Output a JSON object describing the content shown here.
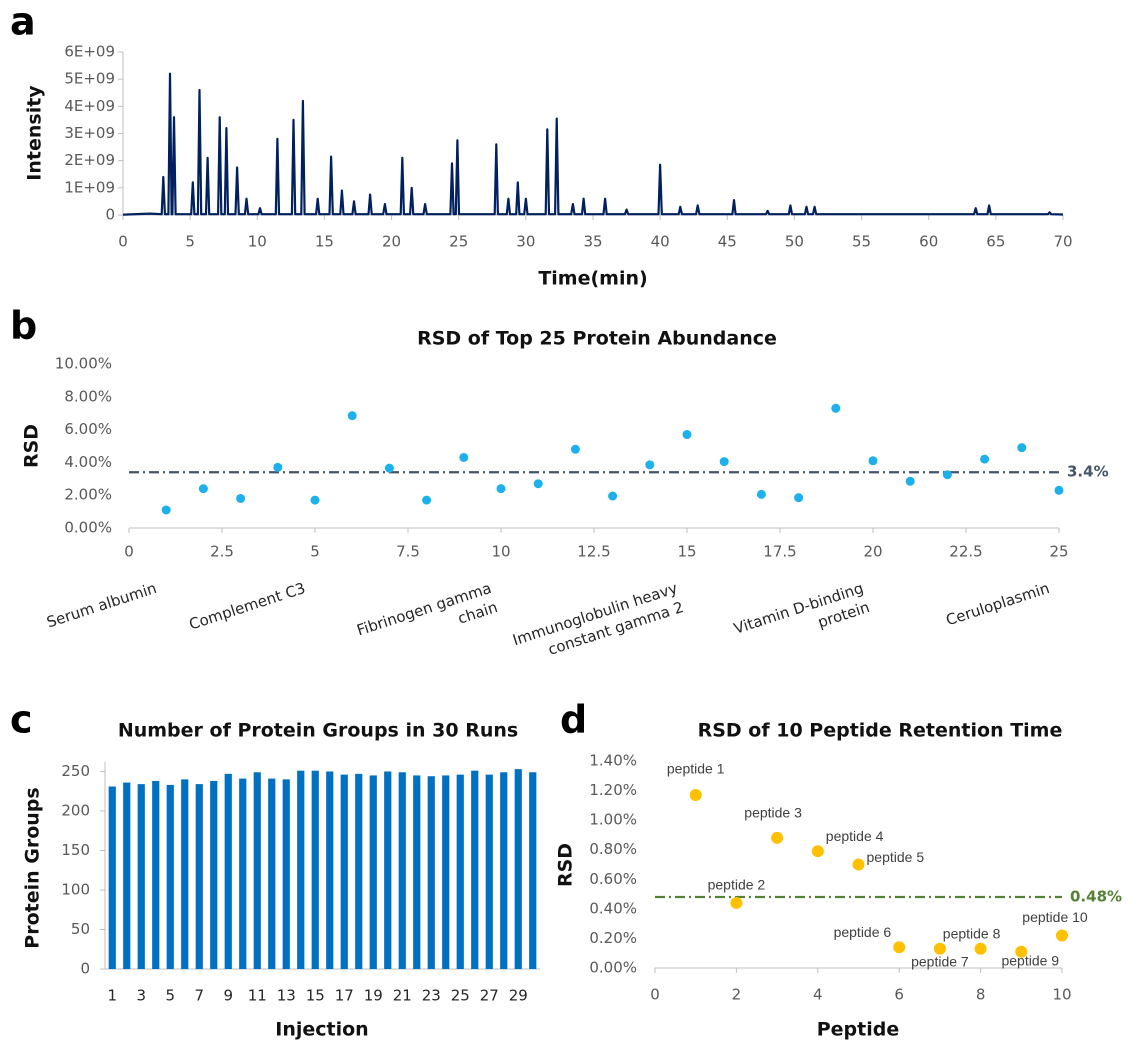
{
  "chart_data": [
    {
      "type": "line",
      "panel": "a",
      "x_label": "Time(min)",
      "y_label": "Intensity",
      "color": "#002060",
      "xlim": [
        0,
        70
      ],
      "xticks": [
        0,
        5,
        10,
        15,
        20,
        25,
        30,
        35,
        40,
        45,
        50,
        55,
        60,
        65,
        70
      ],
      "ylim": [
        0,
        6000000000.0
      ],
      "yticks": [
        0,
        {
          "value": 1000000000.0,
          "label": "1E+09"
        },
        {
          "value": 2000000000.0,
          "label": "2E+09"
        },
        {
          "value": 3000000000.0,
          "label": "3E+09"
        },
        {
          "value": 4000000000.0,
          "label": "4E+09"
        },
        {
          "value": 5000000000.0,
          "label": "5E+09"
        },
        {
          "value": 6000000000.0,
          "label": "6E+09"
        }
      ],
      "x": [
        0,
        2,
        2.88,
        3,
        3.12,
        3.38,
        3.5,
        3.62,
        3.68,
        3.8,
        3.92,
        5.08,
        5.2,
        5.32,
        5.58,
        5.7,
        5.82,
        6.18,
        6.3,
        6.42,
        7.08,
        7.2,
        7.32,
        7.58,
        7.7,
        7.82,
        8.38,
        8.5,
        8.62,
        9.08,
        9.2,
        9.32,
        10.08,
        10.2,
        10.32,
        11.38,
        11.5,
        11.62,
        12.58,
        12.7,
        12.82,
        13.28,
        13.4,
        13.52,
        14.38,
        14.5,
        14.62,
        15.38,
        15.5,
        15.62,
        16.18,
        16.3,
        16.42,
        17.08,
        17.2,
        17.32,
        18.28,
        18.4,
        18.52,
        19.38,
        19.5,
        19.62,
        20.68,
        20.8,
        20.92,
        21.38,
        21.5,
        21.62,
        22.38,
        22.5,
        22.62,
        24.38,
        24.5,
        24.62,
        24.78,
        24.9,
        25.02,
        27.68,
        27.8,
        27.92,
        28.58,
        28.7,
        28.82,
        29.28,
        29.4,
        29.52,
        29.88,
        30,
        30.12,
        31.48,
        31.6,
        31.72,
        32.18,
        32.3,
        32.42,
        33.38,
        33.5,
        33.62,
        34.18,
        34.3,
        34.42,
        35.78,
        35.9,
        36.02,
        37.38,
        37.5,
        37.62,
        39.88,
        40,
        40.12,
        41.38,
        41.5,
        41.62,
        42.68,
        42.8,
        42.92,
        45.38,
        45.5,
        45.62,
        47.88,
        48,
        48.12,
        49.58,
        49.7,
        49.82,
        50.78,
        50.9,
        51.02,
        51.38,
        51.5,
        51.62,
        63.38,
        63.5,
        63.62,
        64.38,
        64.5,
        64.62,
        68.88,
        69,
        69.12,
        70
      ],
      "values": [
        10000000.0,
        50000000.0,
        30000000.0,
        1400000000.0,
        30000000.0,
        30000000.0,
        5200000000.0,
        30000000.0,
        30000000.0,
        3600000000.0,
        30000000.0,
        30000000.0,
        1200000000.0,
        30000000.0,
        30000000.0,
        4600000000.0,
        30000000.0,
        30000000.0,
        2100000000.0,
        30000000.0,
        30000000.0,
        3600000000.0,
        30000000.0,
        30000000.0,
        3200000000.0,
        30000000.0,
        30000000.0,
        1750000000.0,
        30000000.0,
        30000000.0,
        600000000.0,
        30000000.0,
        30000000.0,
        250000000.0,
        30000000.0,
        30000000.0,
        2800000000.0,
        30000000.0,
        30000000.0,
        3500000000.0,
        30000000.0,
        30000000.0,
        4200000000.0,
        30000000.0,
        30000000.0,
        600000000.0,
        30000000.0,
        30000000.0,
        2150000000.0,
        30000000.0,
        30000000.0,
        900000000.0,
        30000000.0,
        30000000.0,
        500000000.0,
        30000000.0,
        30000000.0,
        750000000.0,
        30000000.0,
        30000000.0,
        400000000.0,
        30000000.0,
        30000000.0,
        2100000000.0,
        30000000.0,
        30000000.0,
        1000000000.0,
        30000000.0,
        30000000.0,
        400000000.0,
        30000000.0,
        30000000.0,
        1900000000.0,
        30000000.0,
        30000000.0,
        2750000000.0,
        30000000.0,
        30000000.0,
        2600000000.0,
        30000000.0,
        30000000.0,
        600000000.0,
        30000000.0,
        30000000.0,
        1200000000.0,
        30000000.0,
        30000000.0,
        600000000.0,
        30000000.0,
        30000000.0,
        3150000000.0,
        30000000.0,
        30000000.0,
        3550000000.0,
        30000000.0,
        30000000.0,
        400000000.0,
        30000000.0,
        30000000.0,
        600000000.0,
        30000000.0,
        30000000.0,
        600000000.0,
        30000000.0,
        30000000.0,
        200000000.0,
        30000000.0,
        30000000.0,
        1850000000.0,
        30000000.0,
        30000000.0,
        300000000.0,
        30000000.0,
        30000000.0,
        350000000.0,
        30000000.0,
        30000000.0,
        550000000.0,
        30000000.0,
        30000000.0,
        150000000.0,
        30000000.0,
        30000000.0,
        350000000.0,
        30000000.0,
        30000000.0,
        300000000.0,
        30000000.0,
        30000000.0,
        300000000.0,
        30000000.0,
        30000000.0,
        250000000.0,
        30000000.0,
        30000000.0,
        350000000.0,
        30000000.0,
        30000000.0,
        100000000.0,
        30000000.0,
        20000000.0
      ]
    },
    {
      "type": "scatter",
      "panel": "b",
      "title": "RSD of Top 25 Protein Abundance",
      "y_label": "RSD",
      "color": "#1cb0ec",
      "xlim": [
        0,
        25
      ],
      "xticks": [
        0,
        2.5,
        5,
        7.5,
        10,
        12.5,
        15,
        17.5,
        20,
        22.5,
        25
      ],
      "ylim": [
        0,
        10
      ],
      "yticks": [
        {
          "value": 0,
          "label": "0.00%"
        },
        {
          "value": 2,
          "label": "2.00%"
        },
        {
          "value": 4,
          "label": "4.00%"
        },
        {
          "value": 6,
          "label": "6.00%"
        },
        {
          "value": 8,
          "label": "8.00%"
        },
        {
          "value": 10,
          "label": "10.00%"
        }
      ],
      "x": [
        1,
        2,
        3,
        4,
        5,
        6,
        7,
        8,
        9,
        10,
        11,
        12,
        13,
        14,
        15,
        16,
        17,
        18,
        19,
        20,
        21,
        22,
        23,
        24,
        25
      ],
      "values": [
        1.1,
        2.4,
        1.8,
        3.7,
        1.7,
        6.85,
        3.65,
        1.7,
        4.3,
        2.4,
        2.7,
        4.8,
        1.95,
        3.85,
        5.7,
        4.05,
        2.05,
        1.85,
        7.3,
        4.1,
        2.85,
        3.25,
        4.2,
        4.9,
        2.3
      ],
      "reference_line": {
        "value": 3.4,
        "label": "3.4%",
        "color": "#44546a"
      },
      "annotations": [
        {
          "x": 1,
          "lines": [
            "Serum albumin"
          ]
        },
        {
          "x": 5,
          "lines": [
            "Complement C3"
          ]
        },
        {
          "x": 10,
          "lines": [
            "Fibrinogen gamma",
            "chain"
          ]
        },
        {
          "x": 15,
          "lines": [
            "Immunoglobulin heavy",
            "constant gamma 2"
          ]
        },
        {
          "x": 20,
          "lines": [
            "Vitamin D-binding",
            "protein"
          ]
        },
        {
          "x": 25,
          "lines": [
            "Ceruloplasmin"
          ]
        }
      ]
    },
    {
      "type": "bar",
      "panel": "c",
      "title": "Number of Protein Groups in 30 Runs",
      "x_label": "Injection",
      "y_label": "Protein Groups",
      "color": "#0070c0",
      "categories": [
        "1",
        null,
        "3",
        null,
        "5",
        null,
        "7",
        null,
        "9",
        null,
        "11",
        null,
        "13",
        null,
        "15",
        null,
        "17",
        null,
        "19",
        null,
        "21",
        null,
        "23",
        null,
        "25",
        null,
        "27",
        null,
        "29",
        null
      ],
      "values": [
        231,
        236,
        234,
        238,
        233,
        240,
        234,
        238,
        247,
        241,
        249,
        241,
        240,
        251,
        251,
        250,
        246,
        247,
        245,
        250,
        249,
        245,
        244,
        245,
        246,
        251,
        246,
        249,
        253,
        249
      ],
      "ylim": [
        0,
        262
      ],
      "yticks": [
        0,
        50,
        100,
        150,
        200,
        250
      ]
    },
    {
      "type": "scatter",
      "panel": "d",
      "title": "RSD of 10 Peptide Retention Time",
      "x_label": "Peptide",
      "y_label": "RSD",
      "color": "#ffc000",
      "xlim": [
        0,
        10
      ],
      "xticks": [
        0,
        2,
        4,
        6,
        8,
        10
      ],
      "ylim": [
        0,
        1.4
      ],
      "yticks": [
        {
          "value": 0,
          "label": "0.00%"
        },
        {
          "value": 0.2,
          "label": "0.20%"
        },
        {
          "value": 0.4,
          "label": "0.40%"
        },
        {
          "value": 0.6,
          "label": "0.60%"
        },
        {
          "value": 0.8,
          "label": "0.80%"
        },
        {
          "value": 1,
          "label": "1.00%"
        },
        {
          "value": 1.2,
          "label": "1.20%"
        },
        {
          "value": 1.4,
          "label": "1.40%"
        }
      ],
      "x": [
        1,
        2,
        3,
        4,
        5,
        6,
        7,
        8,
        9,
        10
      ],
      "values": [
        1.17,
        0.44,
        0.88,
        0.79,
        0.7,
        0.14,
        0.13,
        0.13,
        0.11,
        0.22
      ],
      "point_labels": [
        "peptide 1",
        "peptide 2",
        "peptide 3",
        "peptide 4",
        "peptide 5",
        "peptide 6",
        "peptide 7",
        "peptide 8",
        "peptide 9",
        "peptide 10"
      ],
      "reference_line": {
        "value": 0.48,
        "label": "0.48%",
        "color": "#548235"
      }
    }
  ]
}
